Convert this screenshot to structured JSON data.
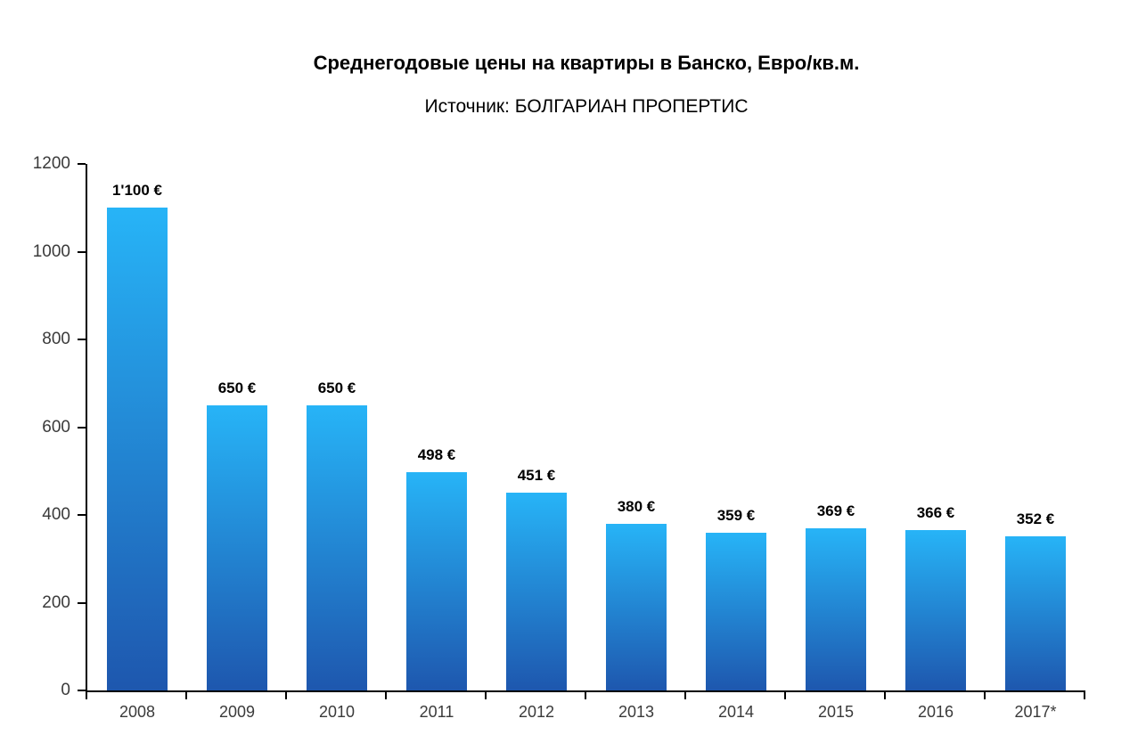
{
  "header": {
    "title": "Среднегодовые цены на квартиры в Банско, Евро/кв.м.",
    "subtitle": "Источник: БОЛГАРИАН ПРОПЕРТИС"
  },
  "colors": {
    "bar_top": "#27b4f7",
    "bar_bottom": "#1e57ae",
    "axis": "#000000",
    "tick_label": "#3a3a3a",
    "value_label": "#000000"
  },
  "chart_data": {
    "type": "bar",
    "title": "Среднегодовые цены на квартиры в Банско, Евро/кв.м.",
    "subtitle": "Источник: БОЛГАРИАН ПРОПЕРТИС",
    "categories": [
      "2008",
      "2009",
      "2010",
      "2011",
      "2012",
      "2013",
      "2014",
      "2015",
      "2016",
      "2017*"
    ],
    "values": [
      1100,
      650,
      650,
      498,
      451,
      380,
      359,
      369,
      366,
      352
    ],
    "value_labels": [
      "1'100 €",
      "650 €",
      "650 €",
      "498 €",
      "451 €",
      "380 €",
      "359 €",
      "369 €",
      "366 €",
      "352 €"
    ],
    "xlabel": "",
    "ylabel": "",
    "ylim": [
      0,
      1200
    ],
    "y_ticks": [
      0,
      200,
      400,
      600,
      800,
      1000,
      1200
    ],
    "grid": false,
    "legend": "none"
  }
}
